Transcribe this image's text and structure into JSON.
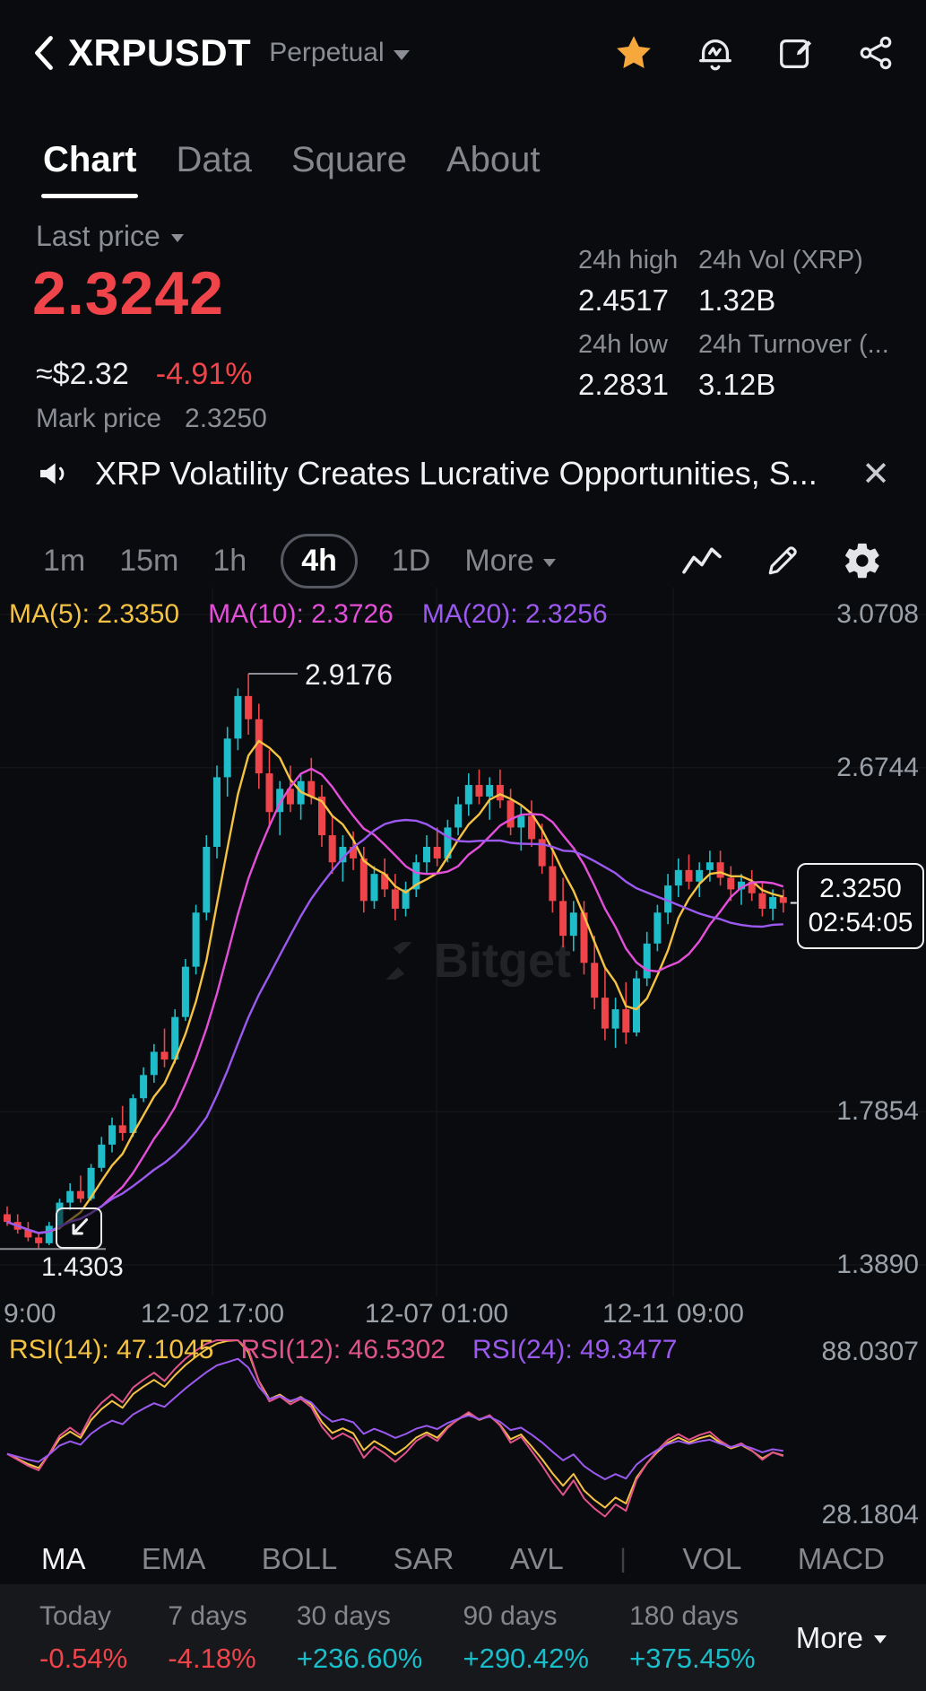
{
  "header": {
    "symbol": "XRPUSDT",
    "market_type": "Perpetual"
  },
  "tabs": [
    {
      "label": "Chart"
    },
    {
      "label": "Data"
    },
    {
      "label": "Square"
    },
    {
      "label": "About"
    }
  ],
  "price_panel": {
    "last_price_label": "Last price",
    "last_price": "2.3242",
    "usd_value": "≈$2.32",
    "change_pct": "-4.91%",
    "mark_price_label": "Mark price",
    "mark_price": "2.3250",
    "stats": [
      {
        "label": "24h high",
        "value": "2.4517"
      },
      {
        "label": "24h Vol (XRP)",
        "value": "1.32B"
      },
      {
        "label": "24h low",
        "value": "2.2831"
      },
      {
        "label": "24h Turnover (...",
        "value": "3.12B"
      }
    ]
  },
  "news": {
    "text": "XRP Volatility Creates Lucrative Opportunities, S...",
    "close_glyph": "✕"
  },
  "timeframes": {
    "items": [
      "1m",
      "15m",
      "1h",
      "4h",
      "1D"
    ],
    "selected": "4h",
    "more_label": "More"
  },
  "watermark": "Bitget",
  "indicator_tabs": [
    "MA",
    "EMA",
    "BOLL",
    "SAR",
    "AVL",
    "VOL",
    "MACD"
  ],
  "performance": {
    "items": [
      {
        "label": "Today",
        "value": "-0.54%",
        "direction": "down"
      },
      {
        "label": "7 days",
        "value": "-4.18%",
        "direction": "down"
      },
      {
        "label": "30 days",
        "value": "+236.60%",
        "direction": "up"
      },
      {
        "label": "90 days",
        "value": "+290.42%",
        "direction": "up"
      },
      {
        "label": "180 days",
        "value": "+375.45%",
        "direction": "up"
      }
    ],
    "more_label": "More"
  },
  "colors": {
    "up": "#1ebdc9",
    "down": "#ef454a",
    "accent_star": "#f7a83c",
    "grid": "#17191f",
    "axis_text": "#9ba1a9"
  },
  "chart_data": [
    {
      "type": "candlestick",
      "interval": "4h",
      "y_ticks": [
        "3.0708",
        "2.6744",
        "1.7854",
        "1.3890"
      ],
      "x_ticks": [
        "9:00",
        "12-02 17:00",
        "12-07 01:00",
        "12-11 09:00"
      ],
      "high_annotation": "2.9176",
      "low_annotation": "1.4303",
      "last_price": "2.3250",
      "countdown": "02:54:05",
      "ma": [
        {
          "label": "MA(5): 2.3350",
          "period": 5,
          "color": "#f5c343"
        },
        {
          "label": "MA(10): 2.3726",
          "period": 10,
          "color": "#e34fd9"
        },
        {
          "label": "MA(20): 2.3256",
          "period": 20,
          "color": "#9b59f0"
        }
      ],
      "candles": [
        [
          1.52,
          1.54,
          1.49,
          1.5
        ],
        [
          1.5,
          1.52,
          1.47,
          1.48
        ],
        [
          1.48,
          1.5,
          1.45,
          1.46
        ],
        [
          1.46,
          1.47,
          1.4303,
          1.445
        ],
        [
          1.445,
          1.5,
          1.44,
          1.49
        ],
        [
          1.49,
          1.56,
          1.48,
          1.55
        ],
        [
          1.55,
          1.6,
          1.53,
          1.58
        ],
        [
          1.58,
          1.62,
          1.55,
          1.56
        ],
        [
          1.56,
          1.65,
          1.555,
          1.64
        ],
        [
          1.64,
          1.72,
          1.63,
          1.7
        ],
        [
          1.7,
          1.77,
          1.68,
          1.75
        ],
        [
          1.75,
          1.8,
          1.71,
          1.73
        ],
        [
          1.73,
          1.83,
          1.72,
          1.82
        ],
        [
          1.82,
          1.9,
          1.81,
          1.88
        ],
        [
          1.88,
          1.96,
          1.86,
          1.94
        ],
        [
          1.94,
          2.0,
          1.9,
          1.92
        ],
        [
          1.92,
          2.05,
          1.91,
          2.03
        ],
        [
          2.03,
          2.18,
          2.02,
          2.16
        ],
        [
          2.16,
          2.32,
          2.14,
          2.3
        ],
        [
          2.3,
          2.5,
          2.28,
          2.47
        ],
        [
          2.47,
          2.68,
          2.44,
          2.65
        ],
        [
          2.65,
          2.78,
          2.6,
          2.75
        ],
        [
          2.75,
          2.88,
          2.72,
          2.86
        ],
        [
          2.86,
          2.9176,
          2.76,
          2.8
        ],
        [
          2.8,
          2.84,
          2.62,
          2.66
        ],
        [
          2.66,
          2.72,
          2.52,
          2.56
        ],
        [
          2.56,
          2.64,
          2.5,
          2.62
        ],
        [
          2.62,
          2.68,
          2.56,
          2.58
        ],
        [
          2.58,
          2.66,
          2.54,
          2.64
        ],
        [
          2.64,
          2.7,
          2.58,
          2.6
        ],
        [
          2.6,
          2.63,
          2.47,
          2.5
        ],
        [
          2.5,
          2.55,
          2.4,
          2.43
        ],
        [
          2.43,
          2.5,
          2.38,
          2.47
        ],
        [
          2.47,
          2.51,
          2.41,
          2.44
        ],
        [
          2.44,
          2.47,
          2.3,
          2.33
        ],
        [
          2.33,
          2.42,
          2.31,
          2.4
        ],
        [
          2.4,
          2.44,
          2.34,
          2.36
        ],
        [
          2.36,
          2.4,
          2.28,
          2.31
        ],
        [
          2.31,
          2.38,
          2.29,
          2.36
        ],
        [
          2.36,
          2.45,
          2.34,
          2.43
        ],
        [
          2.43,
          2.5,
          2.4,
          2.47
        ],
        [
          2.47,
          2.52,
          2.42,
          2.44
        ],
        [
          2.44,
          2.54,
          2.43,
          2.52
        ],
        [
          2.52,
          2.6,
          2.5,
          2.58
        ],
        [
          2.58,
          2.66,
          2.55,
          2.63
        ],
        [
          2.63,
          2.67,
          2.58,
          2.6
        ],
        [
          2.6,
          2.65,
          2.54,
          2.63
        ],
        [
          2.63,
          2.67,
          2.57,
          2.59
        ],
        [
          2.59,
          2.62,
          2.5,
          2.52
        ],
        [
          2.52,
          2.58,
          2.46,
          2.55
        ],
        [
          2.55,
          2.59,
          2.47,
          2.49
        ],
        [
          2.49,
          2.53,
          2.4,
          2.42
        ],
        [
          2.42,
          2.47,
          2.3,
          2.33
        ],
        [
          2.33,
          2.39,
          2.21,
          2.24
        ],
        [
          2.24,
          2.33,
          2.2,
          2.3
        ],
        [
          2.3,
          2.33,
          2.14,
          2.17
        ],
        [
          2.17,
          2.24,
          2.05,
          2.08
        ],
        [
          2.08,
          2.16,
          1.97,
          2.0
        ],
        [
          2.0,
          2.08,
          1.95,
          2.05
        ],
        [
          2.05,
          2.12,
          1.96,
          1.99
        ],
        [
          1.99,
          2.15,
          1.98,
          2.13
        ],
        [
          2.13,
          2.25,
          2.11,
          2.22
        ],
        [
          2.22,
          2.32,
          2.2,
          2.3
        ],
        [
          2.3,
          2.4,
          2.27,
          2.37
        ],
        [
          2.37,
          2.44,
          2.34,
          2.41
        ],
        [
          2.41,
          2.45,
          2.36,
          2.38
        ],
        [
          2.38,
          2.43,
          2.34,
          2.41
        ],
        [
          2.41,
          2.46,
          2.38,
          2.43
        ],
        [
          2.43,
          2.46,
          2.37,
          2.39
        ],
        [
          2.39,
          2.42,
          2.33,
          2.36
        ],
        [
          2.36,
          2.4,
          2.32,
          2.38
        ],
        [
          2.38,
          2.41,
          2.33,
          2.35
        ],
        [
          2.35,
          2.38,
          2.29,
          2.31
        ],
        [
          2.31,
          2.36,
          2.28,
          2.34
        ],
        [
          2.34,
          2.36,
          2.3,
          2.325
        ]
      ]
    },
    {
      "type": "line",
      "name": "RSI",
      "y_ticks": [
        "88.0307",
        "28.1804"
      ],
      "series": [
        {
          "name": "RSI(14)",
          "label": "RSI(14): 47.1045",
          "period": 14,
          "color": "#f5c343"
        },
        {
          "name": "RSI(12)",
          "label": "RSI(12): 46.5302",
          "period": 12,
          "color": "#e0538c"
        },
        {
          "name": "RSI(24)",
          "label": "RSI(24): 49.3477",
          "period": 24,
          "color": "#9b59f0"
        }
      ]
    }
  ]
}
